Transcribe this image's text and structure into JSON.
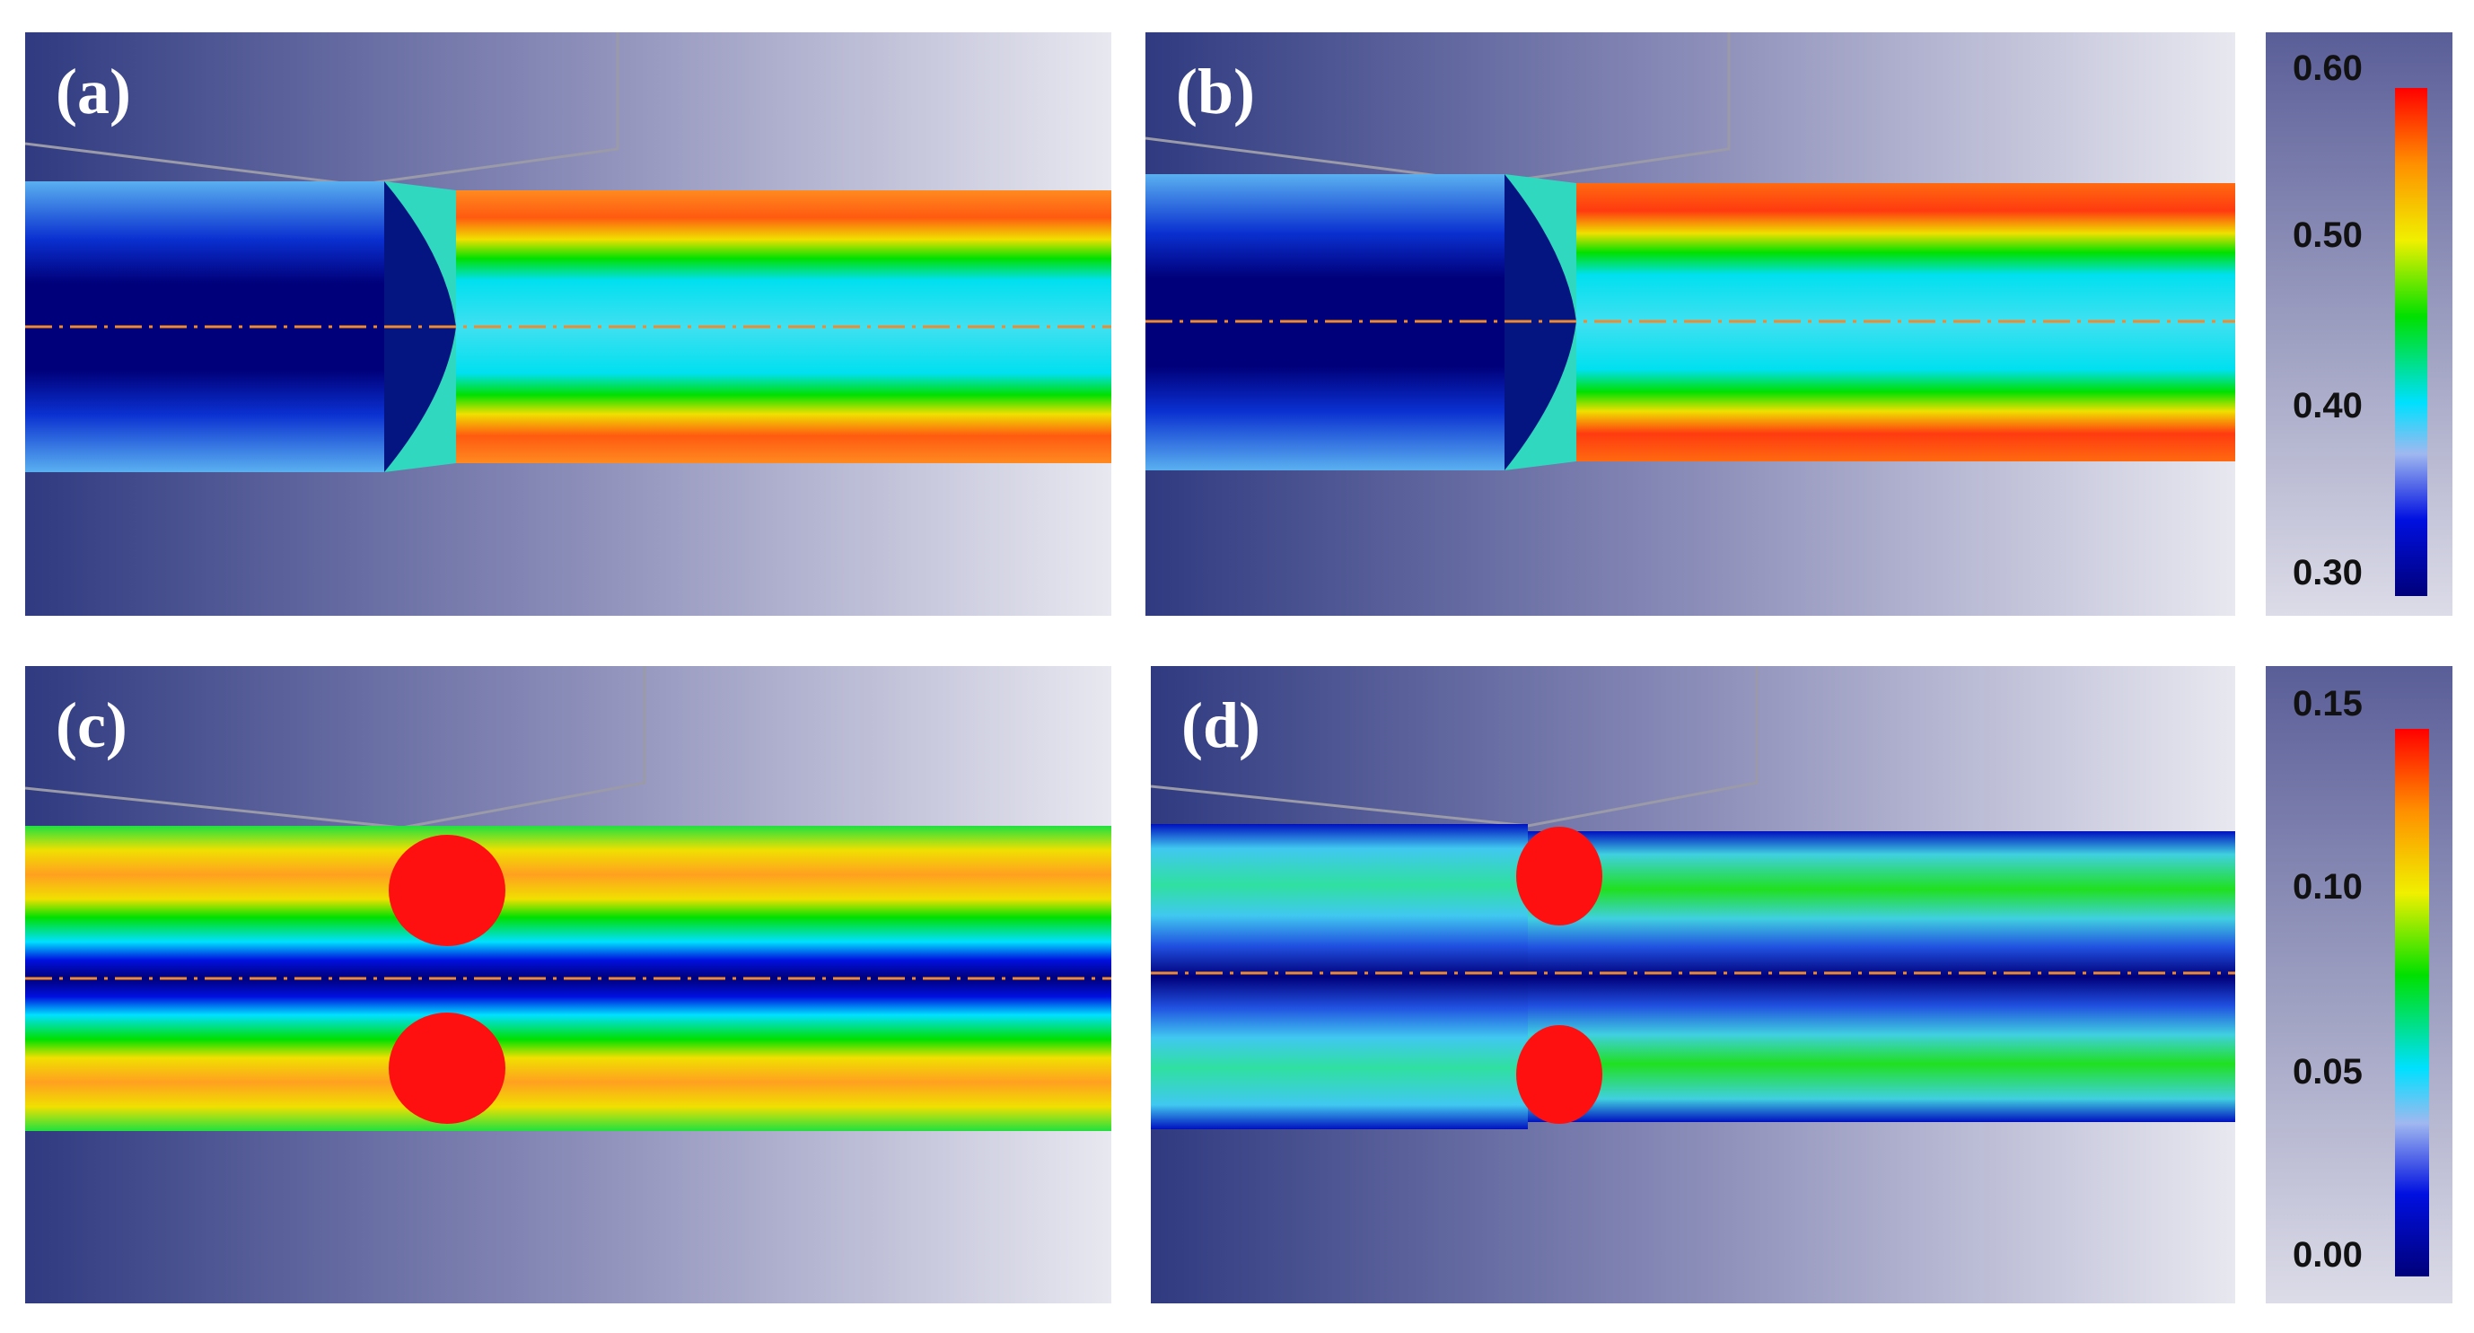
{
  "panels": [
    {
      "label": "(a)",
      "field": "upper",
      "variant": "a"
    },
    {
      "label": "(b)",
      "field": "upper",
      "variant": "b"
    },
    {
      "label": "(c)",
      "field": "lower",
      "variant": "c"
    },
    {
      "label": "(d)",
      "field": "lower",
      "variant": "d"
    }
  ],
  "colorbars": [
    {
      "ticks": [
        "0.60",
        "0.50",
        "0.40",
        "0.30"
      ],
      "min": 0.3,
      "max": 0.6
    },
    {
      "ticks": [
        "0.15",
        "0.10",
        "0.05",
        "0.00"
      ],
      "min": 0.0,
      "max": 0.15
    }
  ],
  "colors": {
    "background_dark": "#2f3a80",
    "background_light": "#e8e8f0",
    "centerline": "#f08a30",
    "colormap": [
      "#00007a",
      "#0010e0",
      "#6aa0f0",
      "#00e0ff",
      "#00e000",
      "#f0f000",
      "#ff9000",
      "#ff0000"
    ]
  }
}
